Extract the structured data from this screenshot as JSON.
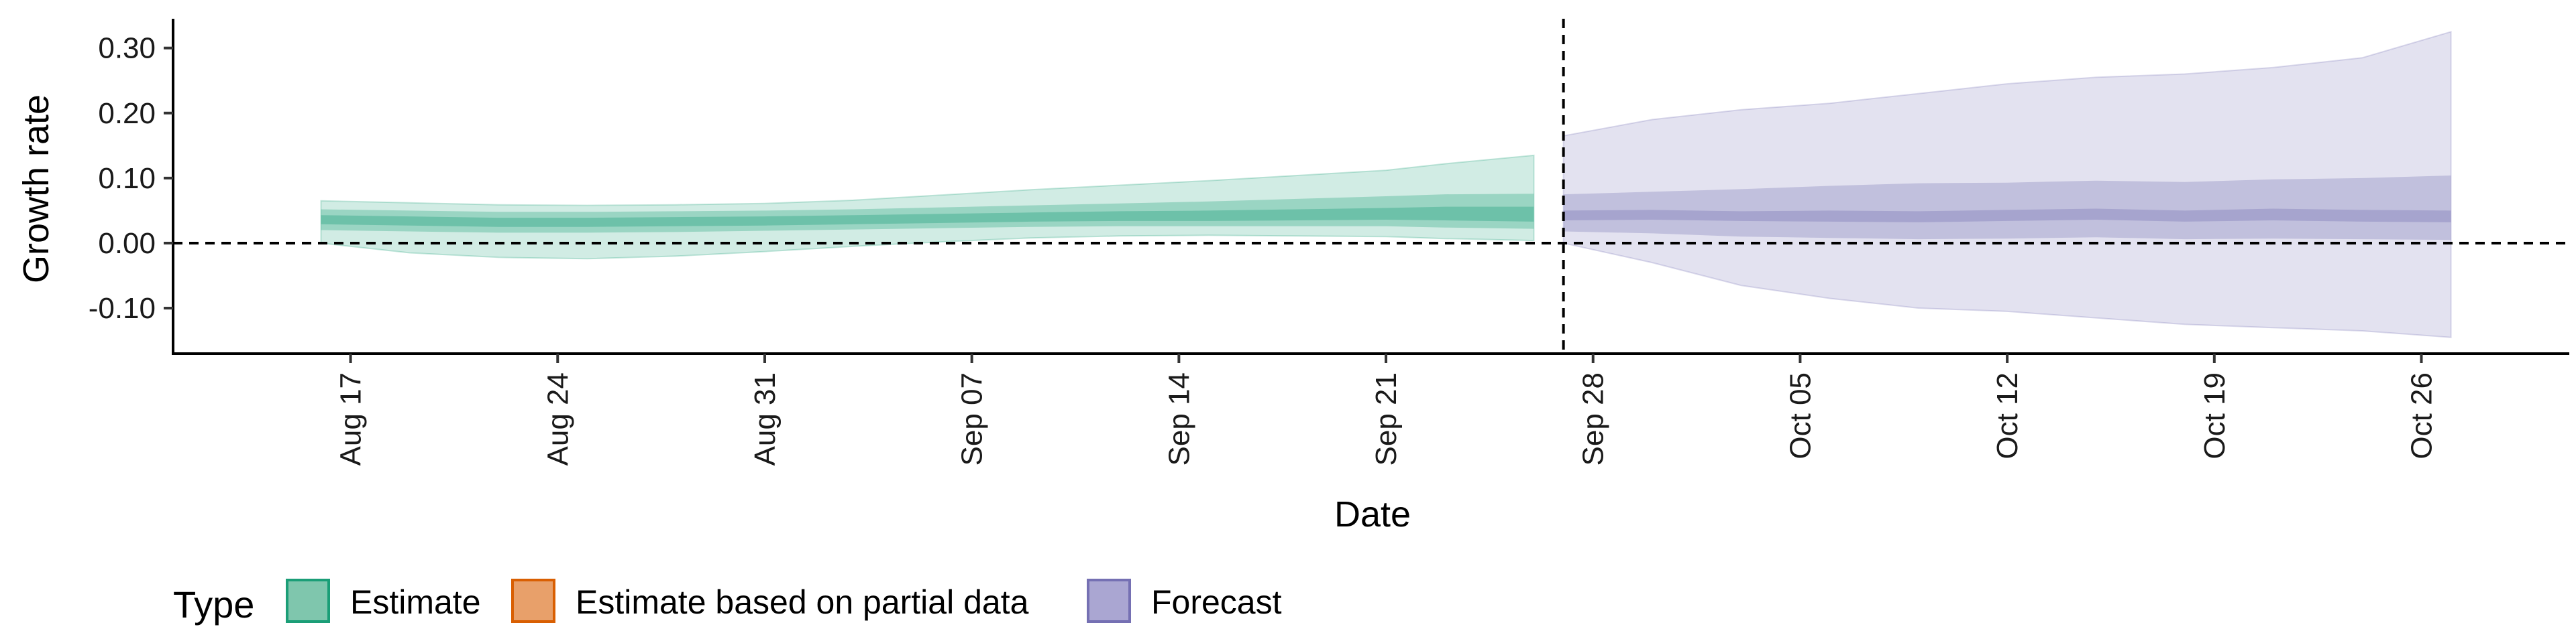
{
  "colors": {
    "estimate": "#1b9e77",
    "partial": "#d95f02",
    "forecast": "#7570b3",
    "estimate_fill": "#7fc6ad",
    "partial_fill": "#e8a06a",
    "forecast_fill": "#aaa6d2"
  },
  "chart_data": {
    "type": "area",
    "xlabel": "Date",
    "ylabel": "Growth rate",
    "ylim": [
      -0.17,
      0.345
    ],
    "yticks": [
      -0.1,
      0.0,
      0.1,
      0.2,
      0.3
    ],
    "ytick_labels": [
      "-0.10",
      "0.00",
      "0.10",
      "0.20",
      "0.30"
    ],
    "xlim": [
      "2020-08-11",
      "2020-10-31"
    ],
    "xticks": [
      "2020-08-17",
      "2020-08-24",
      "2020-08-31",
      "2020-09-07",
      "2020-09-14",
      "2020-09-21",
      "2020-09-28",
      "2020-10-05",
      "2020-10-12",
      "2020-10-19",
      "2020-10-26"
    ],
    "xtick_labels": [
      "Aug 17",
      "Aug 24",
      "Aug 31",
      "Sep 07",
      "Sep 14",
      "Sep 21",
      "Sep 28",
      "Oct 05",
      "Oct 12",
      "Oct 19",
      "Oct 26"
    ],
    "hline": 0.0,
    "vline": "2020-09-27",
    "grid": false,
    "legend_position": "bottom",
    "legend": {
      "title": "Type",
      "entries": [
        "Estimate",
        "Estimate based on partial data",
        "Forecast"
      ]
    },
    "series": [
      {
        "name": "Estimate",
        "x": [
          "2020-08-16",
          "2020-08-19",
          "2020-08-22",
          "2020-08-25",
          "2020-08-28",
          "2020-08-31",
          "2020-09-03",
          "2020-09-06",
          "2020-09-09",
          "2020-09-12",
          "2020-09-15",
          "2020-09-18",
          "2020-09-21",
          "2020-09-23",
          "2020-09-26"
        ],
        "median": [
          0.036,
          0.034,
          0.032,
          0.032,
          0.033,
          0.034,
          0.036,
          0.038,
          0.04,
          0.041,
          0.042,
          0.043,
          0.045,
          0.045,
          0.044
        ],
        "lower_20": [
          0.029,
          0.027,
          0.025,
          0.025,
          0.026,
          0.027,
          0.029,
          0.031,
          0.033,
          0.034,
          0.034,
          0.035,
          0.036,
          0.035,
          0.033
        ],
        "upper_20": [
          0.043,
          0.041,
          0.039,
          0.039,
          0.04,
          0.041,
          0.043,
          0.045,
          0.047,
          0.049,
          0.05,
          0.052,
          0.054,
          0.056,
          0.056
        ],
        "lower_50": [
          0.02,
          0.018,
          0.016,
          0.016,
          0.017,
          0.019,
          0.021,
          0.023,
          0.025,
          0.026,
          0.026,
          0.026,
          0.026,
          0.024,
          0.022
        ],
        "upper_50": [
          0.052,
          0.05,
          0.048,
          0.048,
          0.049,
          0.05,
          0.052,
          0.055,
          0.058,
          0.061,
          0.064,
          0.068,
          0.072,
          0.075,
          0.076
        ],
        "lower_90": [
          0.0,
          -0.015,
          -0.022,
          -0.024,
          -0.02,
          -0.013,
          -0.005,
          0.002,
          0.008,
          0.011,
          0.012,
          0.011,
          0.01,
          0.007,
          0.004
        ],
        "upper_90": [
          0.065,
          0.062,
          0.059,
          0.058,
          0.059,
          0.061,
          0.066,
          0.074,
          0.082,
          0.089,
          0.096,
          0.104,
          0.112,
          0.122,
          0.135
        ]
      },
      {
        "name": "Forecast",
        "x": [
          "2020-09-27",
          "2020-09-30",
          "2020-10-03",
          "2020-10-06",
          "2020-10-09",
          "2020-10-12",
          "2020-10-15",
          "2020-10-18",
          "2020-10-21",
          "2020-10-24",
          "2020-10-27"
        ],
        "median": [
          0.042,
          0.043,
          0.041,
          0.041,
          0.04,
          0.042,
          0.044,
          0.041,
          0.043,
          0.041,
          0.04
        ],
        "lower_20": [
          0.035,
          0.036,
          0.034,
          0.033,
          0.032,
          0.034,
          0.036,
          0.033,
          0.035,
          0.033,
          0.032
        ],
        "upper_20": [
          0.05,
          0.051,
          0.049,
          0.05,
          0.049,
          0.051,
          0.053,
          0.05,
          0.053,
          0.051,
          0.05
        ],
        "lower_50": [
          0.018,
          0.015,
          0.01,
          0.008,
          0.006,
          0.007,
          0.009,
          0.006,
          0.007,
          0.006,
          0.005
        ],
        "upper_50": [
          0.075,
          0.079,
          0.083,
          0.088,
          0.092,
          0.093,
          0.096,
          0.094,
          0.098,
          0.1,
          0.104
        ],
        "lower_90": [
          0.0,
          -0.03,
          -0.065,
          -0.085,
          -0.1,
          -0.105,
          -0.115,
          -0.125,
          -0.13,
          -0.135,
          -0.145
        ],
        "upper_90": [
          0.165,
          0.19,
          0.205,
          0.215,
          0.23,
          0.245,
          0.255,
          0.26,
          0.27,
          0.285,
          0.325
        ]
      }
    ]
  }
}
